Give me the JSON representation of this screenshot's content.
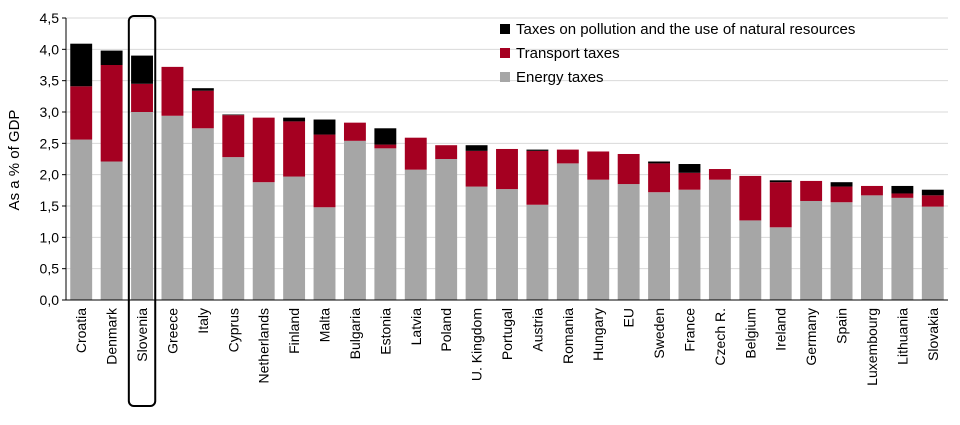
{
  "chart_data": {
    "type": "bar",
    "stacked": true,
    "ylabel": "As a % of GDP",
    "ylim": [
      0,
      4.5
    ],
    "yticks": [
      "0,0",
      "0,5",
      "1,0",
      "1,5",
      "2,0",
      "2,5",
      "3,0",
      "3,5",
      "4,0",
      "4,5"
    ],
    "ytick_values": [
      0,
      0.5,
      1.0,
      1.5,
      2.0,
      2.5,
      3.0,
      3.5,
      4.0,
      4.5
    ],
    "grid": true,
    "legend_position": "top-right",
    "highlighted_category": "Slovenia",
    "categories": [
      "Croatia",
      "Denmark",
      "Slovenia",
      "Greece",
      "Italy",
      "Cyprus",
      "Netherlands",
      "Finland",
      "Malta",
      "Bulgaria",
      "Estonia",
      "Latvia",
      "Poland",
      "U. Kingdom",
      "Portugal",
      "Austria",
      "Romania",
      "Hungary",
      "EU",
      "Sweden",
      "France",
      "Czech R.",
      "Belgium",
      "Ireland",
      "Germany",
      "Spain",
      "Luxembourg",
      "Lithuania",
      "Slovakia"
    ],
    "series": [
      {
        "name": "Energy taxes",
        "color": "#a6a6a6",
        "values": [
          2.56,
          2.21,
          3.0,
          2.94,
          2.74,
          2.28,
          1.88,
          1.97,
          1.48,
          2.54,
          2.42,
          2.08,
          2.25,
          1.81,
          1.77,
          1.52,
          2.18,
          1.92,
          1.85,
          1.72,
          1.76,
          1.92,
          1.27,
          1.16,
          1.58,
          1.56,
          1.67,
          1.63,
          1.49
        ]
      },
      {
        "name": "Transport taxes",
        "color": "#a50021",
        "values": [
          0.85,
          1.54,
          0.45,
          0.78,
          0.6,
          0.67,
          1.03,
          0.88,
          1.16,
          0.29,
          0.06,
          0.51,
          0.22,
          0.57,
          0.64,
          0.86,
          0.22,
          0.45,
          0.48,
          0.46,
          0.27,
          0.17,
          0.71,
          0.72,
          0.32,
          0.25,
          0.15,
          0.07,
          0.18
        ]
      },
      {
        "name": "Taxes on pollution and the use of natural resources",
        "color": "#000000",
        "values": [
          0.68,
          0.23,
          0.45,
          0.0,
          0.04,
          0.01,
          0.0,
          0.06,
          0.24,
          0.0,
          0.26,
          0.0,
          0.0,
          0.09,
          0.0,
          0.02,
          0.0,
          0.0,
          0.0,
          0.03,
          0.14,
          0.0,
          0.0,
          0.03,
          0.0,
          0.07,
          0.0,
          0.12,
          0.09
        ]
      }
    ]
  },
  "legend": {
    "items": [
      {
        "label": "Taxes on pollution and the use of natural resources",
        "color": "#000000"
      },
      {
        "label": "Transport taxes",
        "color": "#a50021"
      },
      {
        "label": "Energy taxes",
        "color": "#a6a6a6"
      }
    ]
  }
}
